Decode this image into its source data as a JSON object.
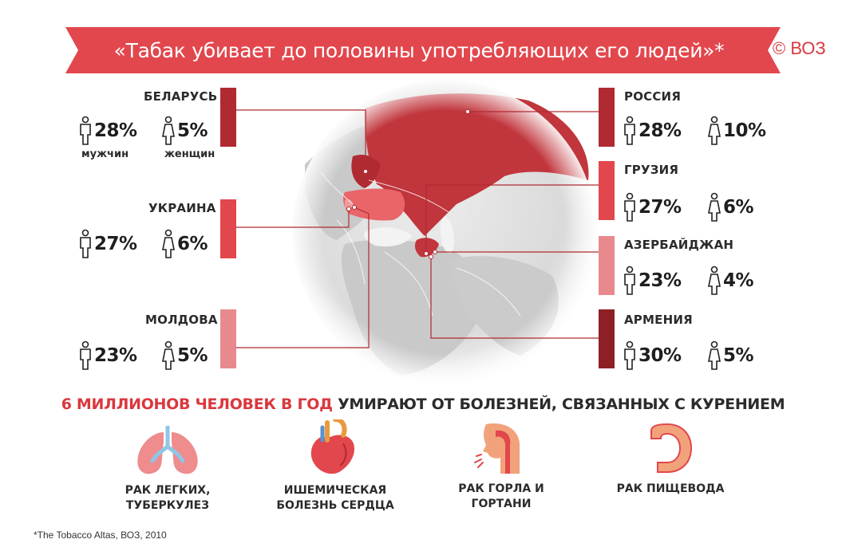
{
  "banner": {
    "title": "«Табак убивает до половины употребляющих его людей»*",
    "copyright": "© ВОЗ"
  },
  "colors": {
    "brand_red": "#e2474d",
    "dark_red": "#a92a31",
    "mid_red": "#d9383e",
    "light_red": "#e88a8d",
    "globe_gray": "#d8d8d8"
  },
  "countries": {
    "belarus": {
      "name": "БЕЛАРУСЬ",
      "men": "28%",
      "women": "5%",
      "men_label": "мужчин",
      "women_label": "женщин"
    },
    "ukraine": {
      "name": "УКРАИНА",
      "men": "27%",
      "women": "6%"
    },
    "moldova": {
      "name": "МОЛДОВА",
      "men": "23%",
      "women": "5%"
    },
    "russia": {
      "name": "РОССИЯ",
      "men": "28%",
      "women": "10%"
    },
    "georgia": {
      "name": "ГРУЗИЯ",
      "men": "27%",
      "women": "6%"
    },
    "azerbaijan": {
      "name": "АЗЕРБАЙДЖАН",
      "men": "23%",
      "women": "4%"
    },
    "armenia": {
      "name": "АРМЕНИЯ",
      "men": "30%",
      "women": "5%"
    }
  },
  "icons": {
    "men": "male-figure-icon",
    "women": "female-figure-icon"
  },
  "headline": {
    "highlight": "6 МИЛЛИОНОВ ЧЕЛОВЕК В ГОД",
    "rest": " УМИРАЮТ ОТ БОЛЕЗНЕЙ, СВЯЗАННЫХ С КУРЕНИЕМ"
  },
  "diseases": [
    {
      "icon": "lungs-icon",
      "label": "РАК ЛЕГКИХ,\nТУБЕРКУЛЕЗ"
    },
    {
      "icon": "heart-icon",
      "label": "ИШЕМИЧЕСКАЯ\nБОЛЕЗНЬ СЕРДЦА"
    },
    {
      "icon": "throat-icon",
      "label": "РАК ГОРЛА И ГОРТАНИ"
    },
    {
      "icon": "esophagus-icon",
      "label": "РАК ПИЩЕВОДА"
    }
  ],
  "footnote": "*The Tobacco Altas, ВОЗ, 2010"
}
